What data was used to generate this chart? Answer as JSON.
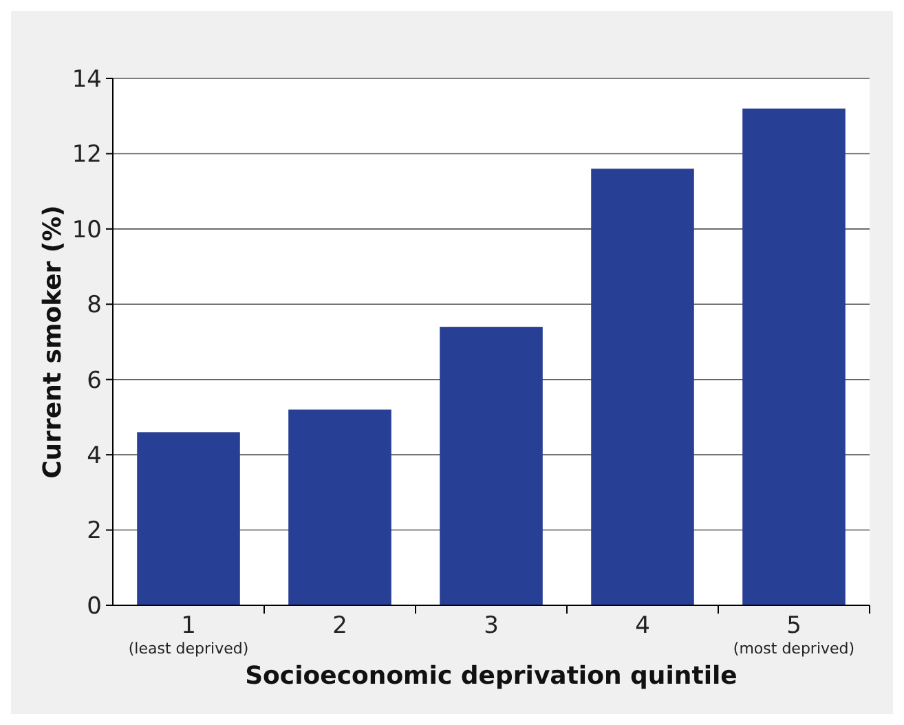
{
  "chart_data": {
    "type": "bar",
    "xlabel": "Socioeconomic deprivation quintile",
    "ylabel": "Current smoker (%)",
    "categories": [
      "1\n(least deprived)",
      "2",
      "3",
      "4",
      "5\n(most deprived)"
    ],
    "values": [
      4.6,
      5.2,
      7.4,
      11.6,
      13.2
    ],
    "color": "#283f96",
    "ylim": [
      0,
      14
    ],
    "yticks": [
      0,
      2,
      4,
      6,
      8,
      10,
      12,
      14
    ],
    "grid": "y"
  }
}
